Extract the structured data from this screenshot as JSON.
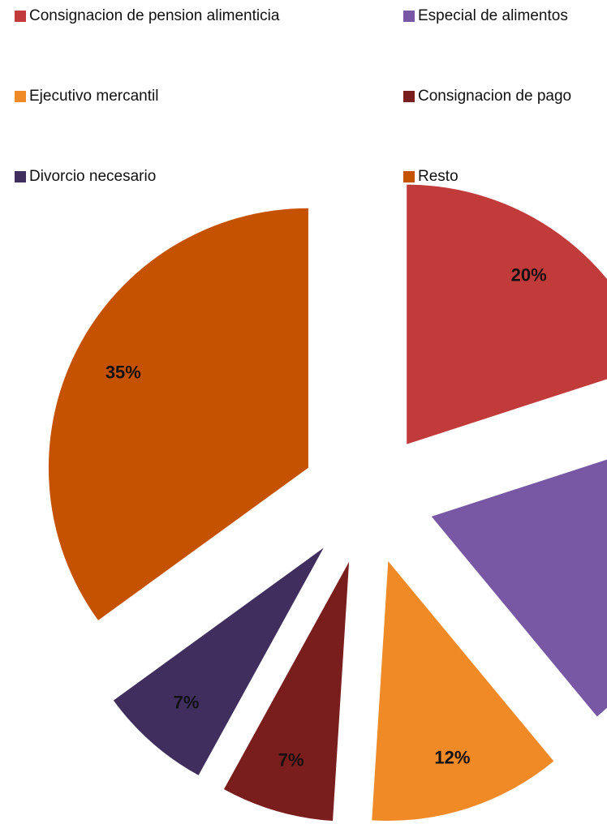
{
  "chart_data": {
    "type": "pie",
    "categories": [
      "Consignacion de pension alimenticia",
      "Especial de alimentos",
      "Ejecutivo mercantil",
      "Consignacion de pago",
      "Divorcio necesario",
      "Resto"
    ],
    "values": [
      20,
      19,
      12,
      7,
      7,
      35
    ],
    "value_labels": [
      "20%",
      null,
      "12%",
      "7%",
      "7%",
      "35%"
    ],
    "colors": [
      "#c23b3b",
      "#7858a4",
      "#f08a26",
      "#7a1d1d",
      "#3f2e5e",
      "#c55200"
    ],
    "legend": "top"
  }
}
